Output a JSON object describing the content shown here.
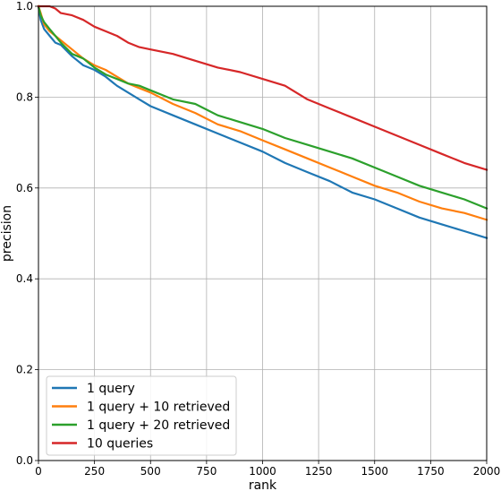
{
  "chart_data": {
    "type": "line",
    "xlabel": "rank",
    "ylabel": "precision",
    "xlim": [
      0,
      2000
    ],
    "ylim": [
      0.0,
      1.0
    ],
    "xticks": [
      0,
      250,
      500,
      750,
      1000,
      1250,
      1500,
      1750,
      2000
    ],
    "yticks": [
      0.0,
      0.2,
      0.4,
      0.6,
      0.8,
      1.0
    ],
    "xtick_labels": [
      "0",
      "250",
      "500",
      "750",
      "1000",
      "1250",
      "1500",
      "1750",
      "2000"
    ],
    "ytick_labels": [
      "0.0",
      "0.2",
      "0.4",
      "0.6",
      "0.8",
      "1.0"
    ],
    "grid": true,
    "legend_position": "lower-left",
    "series": [
      {
        "name": "1 query",
        "color": "#1f77b4",
        "x": [
          0,
          10,
          25,
          50,
          75,
          100,
          150,
          200,
          250,
          300,
          350,
          400,
          450,
          500,
          600,
          700,
          800,
          900,
          1000,
          1100,
          1200,
          1300,
          1400,
          1500,
          1600,
          1700,
          1800,
          1900,
          2000
        ],
        "y": [
          1.0,
          0.97,
          0.95,
          0.935,
          0.92,
          0.915,
          0.89,
          0.87,
          0.86,
          0.845,
          0.825,
          0.81,
          0.795,
          0.78,
          0.76,
          0.74,
          0.72,
          0.7,
          0.68,
          0.655,
          0.635,
          0.615,
          0.59,
          0.575,
          0.555,
          0.535,
          0.52,
          0.505,
          0.49
        ]
      },
      {
        "name": "1 query + 10 retrieved",
        "color": "#ff7f0e",
        "x": [
          0,
          10,
          25,
          50,
          75,
          100,
          150,
          200,
          250,
          300,
          350,
          400,
          450,
          500,
          600,
          700,
          800,
          900,
          1000,
          1100,
          1200,
          1300,
          1400,
          1500,
          1600,
          1700,
          1800,
          1900,
          2000
        ],
        "y": [
          1.0,
          0.985,
          0.96,
          0.945,
          0.935,
          0.925,
          0.905,
          0.885,
          0.87,
          0.86,
          0.845,
          0.83,
          0.82,
          0.81,
          0.785,
          0.765,
          0.74,
          0.725,
          0.705,
          0.685,
          0.665,
          0.645,
          0.625,
          0.605,
          0.59,
          0.57,
          0.555,
          0.545,
          0.53
        ]
      },
      {
        "name": "1 query + 20 retrieved",
        "color": "#2ca02c",
        "x": [
          0,
          10,
          25,
          50,
          75,
          100,
          150,
          200,
          250,
          300,
          350,
          400,
          450,
          500,
          600,
          700,
          800,
          900,
          1000,
          1100,
          1200,
          1300,
          1400,
          1500,
          1600,
          1700,
          1800,
          1900,
          2000
        ],
        "y": [
          1.0,
          0.98,
          0.965,
          0.95,
          0.935,
          0.92,
          0.895,
          0.885,
          0.865,
          0.85,
          0.84,
          0.83,
          0.825,
          0.815,
          0.795,
          0.785,
          0.76,
          0.745,
          0.73,
          0.71,
          0.695,
          0.68,
          0.665,
          0.645,
          0.625,
          0.605,
          0.59,
          0.575,
          0.555
        ]
      },
      {
        "name": "10 queries",
        "color": "#d62728",
        "x": [
          0,
          10,
          25,
          50,
          75,
          100,
          150,
          200,
          250,
          300,
          350,
          400,
          450,
          500,
          600,
          700,
          800,
          900,
          1000,
          1100,
          1200,
          1300,
          1400,
          1500,
          1600,
          1700,
          1800,
          1900,
          2000
        ],
        "y": [
          1.0,
          1.0,
          1.0,
          1.0,
          0.995,
          0.985,
          0.98,
          0.97,
          0.955,
          0.945,
          0.935,
          0.92,
          0.91,
          0.905,
          0.895,
          0.88,
          0.865,
          0.855,
          0.84,
          0.825,
          0.795,
          0.775,
          0.755,
          0.735,
          0.715,
          0.695,
          0.675,
          0.655,
          0.64
        ]
      }
    ]
  }
}
